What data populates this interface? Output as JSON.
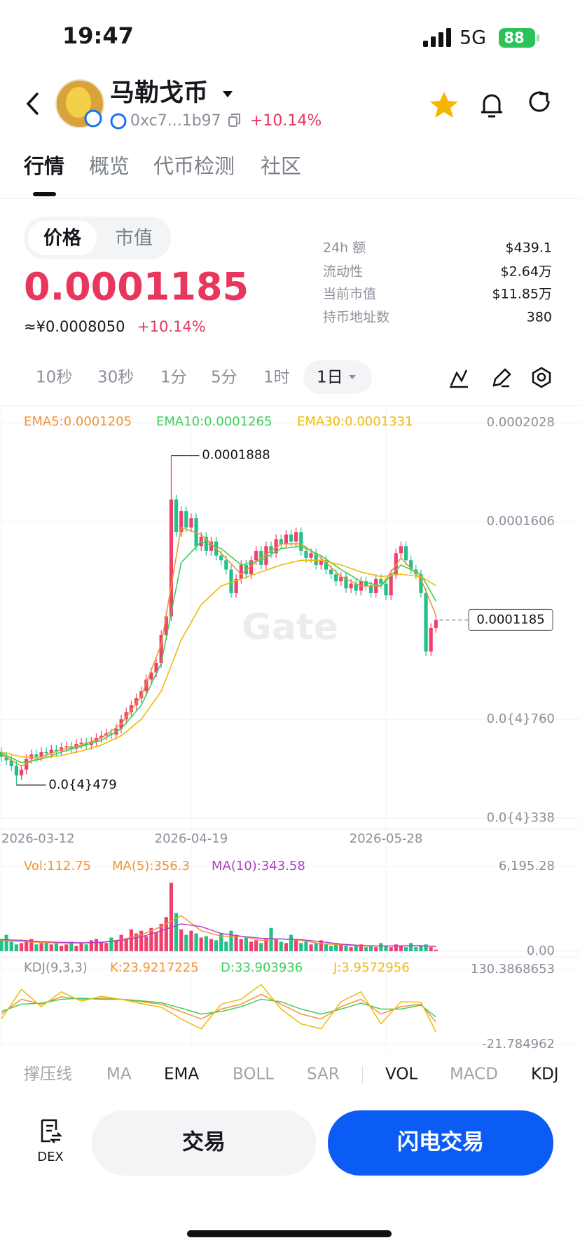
{
  "status_bar": {
    "time": "19:47",
    "network": "5G",
    "battery": "88"
  },
  "header": {
    "title": "马勒戈币",
    "address": "0xc7...1b97",
    "change": "+10.14%"
  },
  "tabs": [
    "行情",
    "概览",
    "代币检测",
    "社区"
  ],
  "price_panel": {
    "toggle": [
      "价格",
      "市值"
    ],
    "price": "0.0001185",
    "cny_price": "≈¥0.0008050",
    "change": "+10.14%",
    "stats": [
      [
        "24h  额",
        "$439.1"
      ],
      [
        "流动性",
        "$2.64万"
      ],
      [
        "当前市值",
        "$11.85万"
      ],
      [
        "持币地址数",
        "380"
      ]
    ]
  },
  "intervals": [
    "10秒",
    "30秒",
    "1分",
    "5分",
    "1时",
    "1日"
  ],
  "chart_data": [
    {
      "type": "candlestick",
      "watermark": "Gate",
      "up_color": "#f0416c",
      "down_color": "#22c08a",
      "categories": [
        "2026-03-12",
        null,
        null,
        null,
        null,
        null,
        null,
        null,
        null,
        null,
        null,
        null,
        null,
        null,
        null,
        null,
        null,
        null,
        null,
        null,
        null,
        null,
        null,
        null,
        null,
        null,
        null,
        null,
        null,
        null,
        null,
        null,
        null,
        null,
        null,
        null,
        null,
        null,
        "2026-04-19",
        null,
        null,
        null,
        null,
        null,
        null,
        null,
        null,
        null,
        null,
        null,
        null,
        null,
        null,
        null,
        null,
        null,
        null,
        null,
        null,
        null,
        null,
        null,
        null,
        null,
        null,
        null,
        null,
        null,
        null,
        null,
        null,
        null,
        null,
        null,
        null,
        null,
        null,
        "2026-05-28",
        null,
        null,
        null,
        null,
        null,
        null,
        null,
        null,
        null,
        null
      ],
      "open": [
        6.2e-05,
        6e-05,
        5.85e-05,
        5.6e-05,
        5.2e-05,
        5.45e-05,
        5.9e-05,
        6.1e-05,
        6e-05,
        6.2e-05,
        6.15e-05,
        6.3e-05,
        6.25e-05,
        6.4e-05,
        6.45e-05,
        6.35e-05,
        6.55e-05,
        6.6e-05,
        6.5e-05,
        6.65e-05,
        6.8e-05,
        6.9e-05,
        7e-05,
        6.95e-05,
        7.2e-05,
        7.6e-05,
        7.9e-05,
        8.2e-05,
        8.5e-05,
        8.8e-05,
        9.3e-05,
        9.6e-05,
        0.0001,
        0.000112,
        0.00012,
        0.00017,
        0.000156,
        0.000165,
        0.000158,
        0.000162,
        0.00015,
        0.000154,
        0.000148,
        0.000152,
        0.000146,
        0.000144,
        0.00014,
        0.00013,
        0.000136,
        0.000142,
        0.000138,
        0.000144,
        0.000148,
        0.000142,
        0.00015,
        0.000147,
        0.000153,
        0.000151,
        0.000155,
        0.000152,
        0.000156,
        0.000148,
        0.000145,
        0.000147,
        0.000142,
        0.000144,
        0.00014,
        0.000138,
        0.000135,
        0.000137,
        0.000132,
        0.000134,
        0.000131,
        0.000135,
        0.000133,
        0.00013,
        0.000136,
        0.000134,
        0.000129,
        0.000138,
        0.000147,
        0.00015,
        0.000144,
        0.00014,
        0.000138,
        0.00013,
        0.000105,
        0.000115
      ],
      "high": [
        6.4e-05,
        6.2e-05,
        6.05e-05,
        5.8e-05,
        5.65e-05,
        6.1e-05,
        6.3e-05,
        6.3e-05,
        6.4e-05,
        6.4e-05,
        6.5e-05,
        6.5e-05,
        6.6e-05,
        6.65e-05,
        6.65e-05,
        6.75e-05,
        6.8e-05,
        6.8e-05,
        6.85e-05,
        7e-05,
        7.1e-05,
        7.2e-05,
        7.2e-05,
        7.4e-05,
        7.8e-05,
        8.1e-05,
        8.4e-05,
        8.7e-05,
        9e-05,
        9.5e-05,
        9.8e-05,
        0.000102,
        0.000114,
        0.000122,
        0.0001888,
        0.000172,
        0.000167,
        0.000167,
        0.000164,
        0.000164,
        0.000156,
        0.000156,
        0.000154,
        0.000154,
        0.000148,
        0.000146,
        0.000142,
        0.000138,
        0.000144,
        0.000144,
        0.000146,
        0.00015,
        0.00015,
        0.000152,
        0.000152,
        0.000155,
        0.000155,
        0.000157,
        0.000157,
        0.000158,
        0.000158,
        0.00015,
        0.000149,
        0.000149,
        0.000146,
        0.000146,
        0.000142,
        0.00014,
        0.000139,
        0.000139,
        0.000136,
        0.000136,
        0.000137,
        0.000137,
        0.000135,
        0.000138,
        0.000138,
        0.000136,
        0.00014,
        0.000149,
        0.000152,
        0.000152,
        0.000146,
        0.000142,
        0.00014,
        0.000132,
        0.000117,
        0.0001205
      ],
      "low": [
        5.8e-05,
        5.65e-05,
        5.4e-05,
        4.79e-05,
        5e-05,
        5.25e-05,
        5.7e-05,
        5.8e-05,
        5.8e-05,
        5.95e-05,
        5.95e-05,
        6.05e-05,
        6.05e-05,
        6.2e-05,
        6.15e-05,
        6.15e-05,
        6.35e-05,
        6.3e-05,
        6.3e-05,
        6.45e-05,
        6.6e-05,
        6.7e-05,
        6.75e-05,
        6.75e-05,
        7e-05,
        7.4e-05,
        7.7e-05,
        8e-05,
        8.3e-05,
        8.6e-05,
        9.1e-05,
        9.4e-05,
        9.8e-05,
        0.00011,
        0.000118,
        0.000154,
        0.000154,
        0.000156,
        0.000156,
        0.000148,
        0.000148,
        0.000146,
        0.000146,
        0.000144,
        0.000142,
        0.000138,
        0.000128,
        0.000128,
        0.000134,
        0.000136,
        0.000136,
        0.000142,
        0.00014,
        0.00014,
        0.000145,
        0.000145,
        0.000149,
        0.000149,
        0.00015,
        0.00015,
        0.000146,
        0.000143,
        0.000143,
        0.00014,
        0.00014,
        0.000138,
        0.000136,
        0.000133,
        0.000133,
        0.00013,
        0.00013,
        0.000129,
        0.000129,
        0.000131,
        0.000128,
        0.000128,
        0.000132,
        0.000127,
        0.000127,
        0.000136,
        0.000145,
        0.000142,
        0.000138,
        0.000136,
        0.000128,
        0.000103,
        0.000103,
        0.000113
      ],
      "close": [
        6e-05,
        5.85e-05,
        5.6e-05,
        5.2e-05,
        5.45e-05,
        5.9e-05,
        6.1e-05,
        6e-05,
        6.2e-05,
        6.15e-05,
        6.3e-05,
        6.25e-05,
        6.4e-05,
        6.45e-05,
        6.35e-05,
        6.55e-05,
        6.6e-05,
        6.5e-05,
        6.65e-05,
        6.8e-05,
        6.9e-05,
        7e-05,
        6.95e-05,
        7.2e-05,
        7.6e-05,
        7.9e-05,
        8.2e-05,
        8.5e-05,
        8.8e-05,
        9.3e-05,
        9.6e-05,
        0.0001,
        0.000112,
        0.00012,
        0.00017,
        0.000156,
        0.000165,
        0.000158,
        0.000162,
        0.00015,
        0.000154,
        0.000148,
        0.000152,
        0.000146,
        0.000144,
        0.00014,
        0.00013,
        0.000136,
        0.000142,
        0.000138,
        0.000144,
        0.000148,
        0.000142,
        0.00015,
        0.000147,
        0.000153,
        0.000151,
        0.000155,
        0.000152,
        0.000156,
        0.000148,
        0.000145,
        0.000147,
        0.000142,
        0.000144,
        0.00014,
        0.000138,
        0.000135,
        0.000137,
        0.000132,
        0.000134,
        0.000131,
        0.000135,
        0.000133,
        0.00013,
        0.000136,
        0.000134,
        0.000129,
        0.000138,
        0.000147,
        0.00015,
        0.000144,
        0.00014,
        0.000138,
        0.00013,
        0.000105,
        0.000115,
        0.0001185
      ],
      "max_label": "0.0001888",
      "min_label": "0.0{4}479",
      "last_label": "0.0001185",
      "ylim": [
        3.38e-05,
        0.0002028
      ],
      "yticks": [
        0.0002028,
        0.0001606,
        {
          "value": 7.6e-05,
          "label": "0.0{4}760"
        },
        {
          "value": 3.38e-05,
          "label": "0.0{4}338"
        }
      ],
      "series": [
        {
          "name": "EMA5:0.0001205",
          "color": "#f39334",
          "x": [
            0,
            4,
            8,
            12,
            16,
            20,
            24,
            28,
            32,
            36,
            40,
            44,
            48,
            52,
            56,
            60,
            64,
            68,
            72,
            76,
            80,
            84,
            87
          ],
          "values": [
            6.1e-05,
            5.6e-05,
            6e-05,
            6.3e-05,
            6.5e-05,
            6.8e-05,
            7.4e-05,
            8.6e-05,
            0.000108,
            0.000158,
            0.000155,
            0.000147,
            0.000138,
            0.000145,
            0.000151,
            0.000151,
            0.000145,
            0.000137,
            0.000133,
            0.000133,
            0.000145,
            0.000136,
            0.0001205
          ]
        },
        {
          "name": "EMA10:0.0001265",
          "color": "#3fcf5c",
          "x": [
            0,
            4,
            8,
            12,
            16,
            20,
            24,
            28,
            32,
            36,
            40,
            44,
            48,
            52,
            56,
            60,
            64,
            68,
            72,
            76,
            80,
            84,
            87
          ],
          "values": [
            6.15e-05,
            5.75e-05,
            5.9e-05,
            6.2e-05,
            6.45e-05,
            6.7e-05,
            7.2e-05,
            8.2e-05,
            0.0001,
            0.000143,
            0.000152,
            0.000149,
            0.000142,
            0.000144,
            0.000149,
            0.00015,
            0.000146,
            0.00014,
            0.000135,
            0.000133,
            0.000142,
            0.000138,
            0.0001265
          ]
        },
        {
          "name": "EMA30:0.0001331",
          "color": "#f0b90b",
          "x": [
            0,
            4,
            8,
            12,
            16,
            20,
            24,
            28,
            32,
            36,
            40,
            44,
            48,
            52,
            56,
            60,
            64,
            68,
            72,
            76,
            80,
            84,
            87
          ],
          "values": [
            6.2e-05,
            6e-05,
            5.95e-05,
            6.05e-05,
            6.25e-05,
            6.5e-05,
            6.9e-05,
            7.6e-05,
            8.8e-05,
            0.00011,
            0.000125,
            0.000133,
            0.000136,
            0.000139,
            0.000142,
            0.000144,
            0.000144,
            0.000142,
            0.000139,
            0.000137,
            0.000138,
            0.000137,
            0.0001331
          ]
        }
      ]
    },
    {
      "type": "bar",
      "label": "Vol:112.75",
      "color": "#f39334",
      "values": [
        900,
        1200,
        700,
        500,
        600,
        800,
        900,
        500,
        600,
        700,
        500,
        600,
        400,
        500,
        700,
        400,
        600,
        500,
        800,
        900,
        700,
        600,
        1000,
        800,
        1200,
        900,
        1600,
        1300,
        1500,
        1100,
        1700,
        1400,
        2000,
        2500,
        5000,
        2800,
        1600,
        1200,
        1500,
        1300,
        1000,
        1100,
        900,
        800,
        1300,
        700,
        1500,
        1200,
        900,
        1000,
        700,
        800,
        600,
        900,
        1700,
        900,
        700,
        600,
        1200,
        800,
        600,
        700,
        500,
        600,
        800,
        500,
        400,
        600,
        500,
        400,
        300,
        400,
        500,
        300,
        400,
        300,
        600,
        400,
        300,
        500,
        400,
        300,
        600,
        300,
        400,
        500,
        300,
        112.75
      ],
      "ylim": [
        0,
        6195.28
      ],
      "yticks": [
        {
          "value": 6195.28,
          "label": "6,195.28"
        },
        {
          "value": 0,
          "label": "0.00"
        }
      ],
      "series": [
        {
          "name": "MA(5):356.3",
          "color": "#f39334",
          "x": [
            0,
            4,
            8,
            12,
            16,
            20,
            24,
            28,
            32,
            36,
            40,
            44,
            48,
            52,
            56,
            60,
            64,
            68,
            72,
            76,
            80,
            84,
            87
          ],
          "values": [
            800,
            700,
            650,
            600,
            600,
            650,
            850,
            1200,
            1800,
            2600,
            1500,
            1100,
            1100,
            800,
            900,
            800,
            550,
            480,
            380,
            380,
            400,
            420,
            356.3
          ]
        },
        {
          "name": "MA(10):343.58",
          "color": "#b23cc9",
          "x": [
            0,
            4,
            8,
            12,
            16,
            20,
            24,
            28,
            32,
            36,
            40,
            44,
            48,
            52,
            56,
            60,
            64,
            68,
            72,
            76,
            80,
            84,
            87
          ],
          "values": [
            850,
            800,
            700,
            650,
            620,
            640,
            800,
            1050,
            1500,
            2000,
            1800,
            1300,
            1100,
            950,
            900,
            850,
            700,
            520,
            420,
            380,
            390,
            400,
            343.58
          ]
        }
      ]
    },
    {
      "type": "line",
      "title": "KDJ(9,3,3)",
      "ylim": [
        -21.784962,
        130.3868653
      ],
      "yticks": [
        130.3868653,
        -21.784962
      ],
      "series": [
        {
          "name": "K:23.9217225",
          "color": "#f39334",
          "x": [
            0,
            4,
            8,
            12,
            16,
            20,
            24,
            28,
            32,
            36,
            40,
            44,
            48,
            52,
            56,
            60,
            64,
            68,
            72,
            76,
            80,
            84,
            87
          ],
          "values": [
            40,
            70,
            60,
            75,
            70,
            72,
            70,
            65,
            60,
            45,
            30,
            50,
            60,
            80,
            60,
            40,
            30,
            55,
            70,
            40,
            55,
            60,
            23.9217225
          ]
        },
        {
          "name": "D:33.903936",
          "color": "#3fcf5c",
          "x": [
            0,
            4,
            8,
            12,
            16,
            20,
            24,
            28,
            32,
            36,
            40,
            44,
            48,
            52,
            56,
            60,
            64,
            68,
            72,
            76,
            80,
            84,
            87
          ],
          "values": [
            45,
            60,
            62,
            70,
            72,
            70,
            70,
            67,
            63,
            52,
            40,
            45,
            55,
            70,
            65,
            50,
            40,
            50,
            62,
            50,
            50,
            58,
            33.903936
          ]
        },
        {
          "name": "J:3.9572956",
          "color": "#f0b90b",
          "x": [
            0,
            4,
            8,
            12,
            16,
            20,
            24,
            28,
            32,
            36,
            40,
            44,
            48,
            52,
            56,
            60,
            64,
            68,
            72,
            76,
            80,
            84,
            87
          ],
          "values": [
            30,
            90,
            55,
            85,
            66,
            76,
            70,
            61,
            54,
            30,
            10,
            60,
            70,
            100,
            50,
            20,
            10,
            65,
            85,
            20,
            65,
            64,
            3.9572956
          ]
        }
      ]
    }
  ],
  "indicator_tabs": [
    "撑压线",
    "MA",
    "EMA",
    "BOLL",
    "SAR",
    "VOL",
    "MACD",
    "KDJ"
  ],
  "bottom_bar": {
    "dex": "DEX",
    "trade": "交易",
    "flash_trade": "闪电交易"
  }
}
